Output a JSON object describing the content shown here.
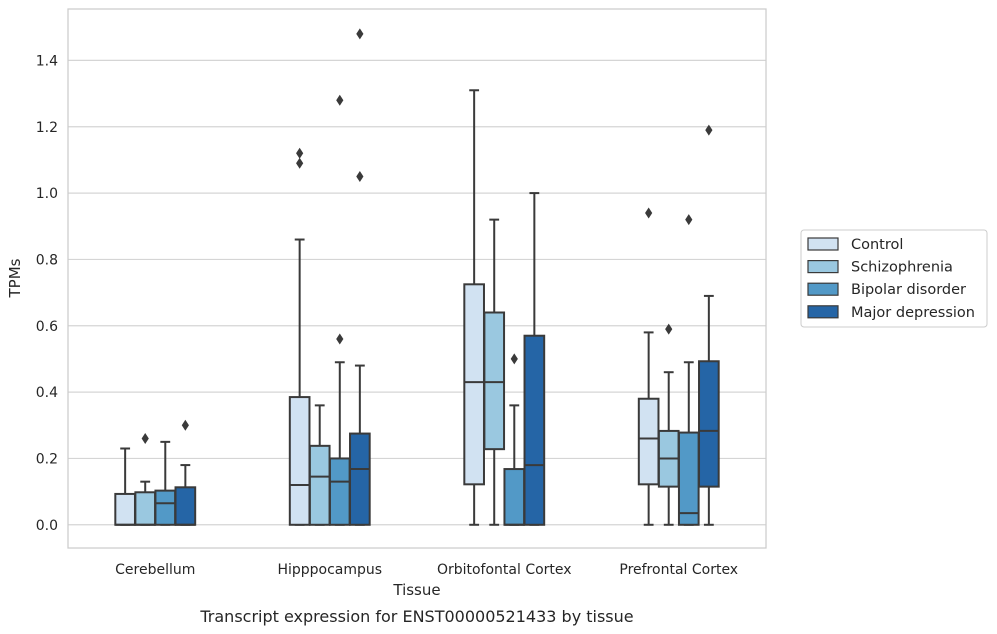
{
  "chart_data": {
    "type": "box",
    "caption": "Transcript expression for ENST00000521433 by tissue",
    "xlabel": "Tissue",
    "ylabel": "TPMs",
    "ylim": [
      -0.07,
      1.555
    ],
    "yticks": [
      "0.0",
      "0.2",
      "0.4",
      "0.6",
      "0.8",
      "1.0",
      "1.2",
      "1.4"
    ],
    "ytick_values": [
      0.0,
      0.2,
      0.4,
      0.6,
      0.8,
      1.0,
      1.2,
      1.4
    ],
    "grid": true,
    "legend_position": "right",
    "categories": [
      "Cerebellum",
      "Hipppocampus",
      "Orbitofontal Cortex",
      "Prefrontal Cortex"
    ],
    "series": [
      {
        "name": "Control",
        "color": "#d1e2f2",
        "boxes": [
          {
            "whislo": 0.0,
            "q1": 0.0,
            "med": 0.0,
            "q3": 0.093,
            "whishi": 0.23,
            "fliers": []
          },
          {
            "whislo": 0.0,
            "q1": 0.0,
            "med": 0.12,
            "q3": 0.385,
            "whishi": 0.86,
            "fliers": [
              1.09,
              1.12
            ]
          },
          {
            "whislo": 0.0,
            "q1": 0.122,
            "med": 0.43,
            "q3": 0.725,
            "whishi": 1.31,
            "fliers": []
          },
          {
            "whislo": 0.0,
            "q1": 0.122,
            "med": 0.26,
            "q3": 0.38,
            "whishi": 0.58,
            "fliers": [
              0.94
            ]
          }
        ]
      },
      {
        "name": "Schizophrenia",
        "color": "#9ac8e0",
        "boxes": [
          {
            "whislo": 0.0,
            "q1": 0.0,
            "med": 0.0,
            "q3": 0.098,
            "whishi": 0.13,
            "fliers": [
              0.26
            ]
          },
          {
            "whislo": 0.0,
            "q1": 0.0,
            "med": 0.145,
            "q3": 0.238,
            "whishi": 0.36,
            "fliers": []
          },
          {
            "whislo": 0.0,
            "q1": 0.228,
            "med": 0.43,
            "q3": 0.64,
            "whishi": 0.92,
            "fliers": []
          },
          {
            "whislo": 0.0,
            "q1": 0.115,
            "med": 0.2,
            "q3": 0.283,
            "whishi": 0.46,
            "fliers": [
              0.59
            ]
          }
        ]
      },
      {
        "name": "Bipolar disorder",
        "color": "#5299c7",
        "boxes": [
          {
            "whislo": 0.0,
            "q1": 0.0,
            "med": 0.065,
            "q3": 0.103,
            "whishi": 0.25,
            "fliers": []
          },
          {
            "whislo": 0.0,
            "q1": 0.0,
            "med": 0.13,
            "q3": 0.2,
            "whishi": 0.49,
            "fliers": [
              0.56,
              1.28
            ]
          },
          {
            "whislo": 0.0,
            "q1": 0.0,
            "med": 0.0,
            "q3": 0.168,
            "whishi": 0.36,
            "fliers": [
              0.5
            ]
          },
          {
            "whislo": 0.0,
            "q1": 0.0,
            "med": 0.035,
            "q3": 0.278,
            "whishi": 0.49,
            "fliers": [
              0.92
            ]
          }
        ]
      },
      {
        "name": "Major depression",
        "color": "#2565a6",
        "boxes": [
          {
            "whislo": 0.0,
            "q1": 0.0,
            "med": 0.0,
            "q3": 0.113,
            "whishi": 0.18,
            "fliers": [
              0.3
            ]
          },
          {
            "whislo": 0.0,
            "q1": 0.0,
            "med": 0.168,
            "q3": 0.275,
            "whishi": 0.48,
            "fliers": [
              1.05,
              1.48
            ]
          },
          {
            "whislo": 0.0,
            "q1": 0.0,
            "med": 0.18,
            "q3": 0.57,
            "whishi": 1.0,
            "fliers": []
          },
          {
            "whislo": 0.0,
            "q1": 0.115,
            "med": 0.283,
            "q3": 0.493,
            "whishi": 0.69,
            "fliers": [
              1.19
            ]
          }
        ]
      }
    ]
  }
}
